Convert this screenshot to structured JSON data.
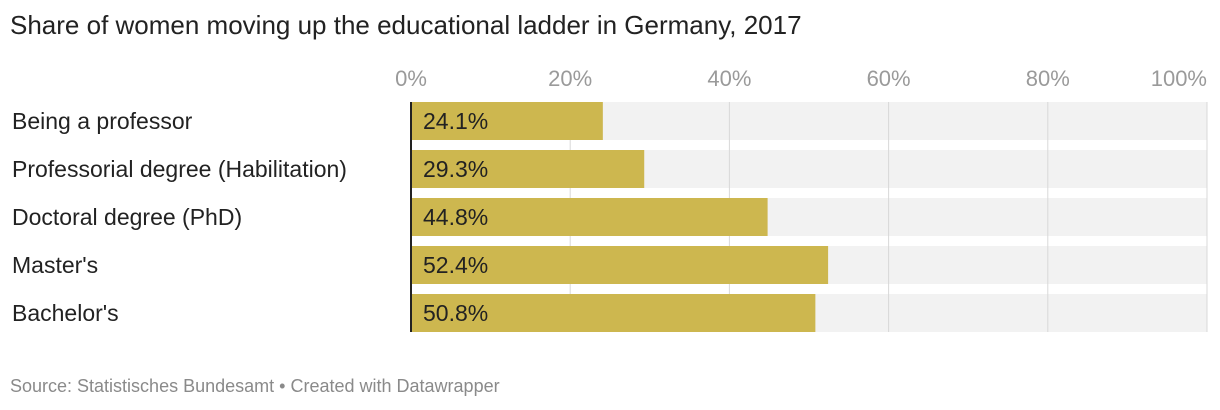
{
  "title": "Share of women moving up the educational ladder in Germany, 2017",
  "footer": {
    "source": "Source: Statistisches Bundesamt",
    "separator": "•",
    "credit": "Created with Datawrapper"
  },
  "colors": {
    "bar": "#cdb74f",
    "track": "#f2f2f2",
    "grid": "#d8d8d8",
    "axis": "#222222",
    "tick_text": "#9a9a9a",
    "label_text": "#222222"
  },
  "chart_data": {
    "type": "bar",
    "orientation": "horizontal",
    "categories": [
      "Being a professor",
      "Professorial degree (Habilitation)",
      "Doctoral degree (PhD)",
      "Master's",
      "Bachelor's"
    ],
    "values": [
      24.1,
      29.3,
      44.8,
      52.4,
      50.8
    ],
    "value_labels": [
      "24.1%",
      "29.3%",
      "44.8%",
      "52.4%",
      "50.8%"
    ],
    "xlim": [
      0,
      100
    ],
    "ticks": [
      0,
      20,
      40,
      60,
      80,
      100
    ],
    "tick_labels": [
      "0%",
      "20%",
      "40%",
      "60%",
      "80%",
      "100%"
    ],
    "grid": true,
    "axis_position": "top"
  }
}
